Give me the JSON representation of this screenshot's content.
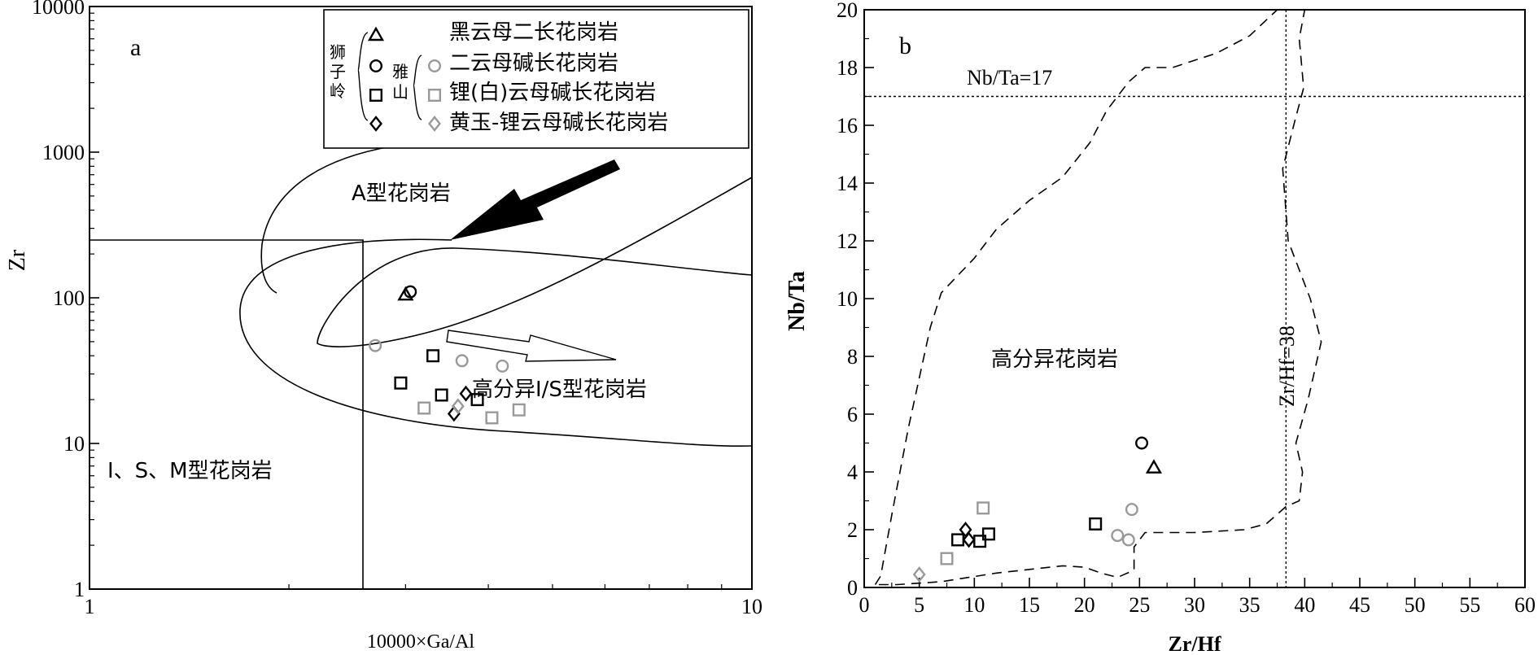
{
  "chart_data": [
    {
      "panel_label": "a",
      "type": "scatter",
      "x_scale": "log",
      "y_scale": "log",
      "xlabel": "10000×Ga/Al",
      "ylabel": "Zr",
      "xlim": [
        1,
        10
      ],
      "ylim": [
        1,
        10000
      ],
      "x_ticks": [
        "1",
        "10"
      ],
      "y_ticks": [
        "1",
        "10",
        "100",
        "1000",
        "10000"
      ],
      "field_labels": {
        "a_type": "A型花岗岩",
        "fractionated": "高分异I/S型花岗岩",
        "ism": "I、S、M型花岗岩"
      },
      "legend": {
        "group1": "狮子岭",
        "group2": "雅山",
        "entries": [
          "黑云母二长花岗岩",
          "二云母碱长花岗岩",
          "锂(白)云母碱长花岗岩",
          "黄玉-锂云母碱长花岗岩"
        ]
      },
      "series": [
        {
          "name": "黑云母二长花岗岩",
          "group": "狮子岭",
          "marker": "triangle",
          "color": "#000000",
          "x": [
            3.0
          ],
          "y": [
            105
          ]
        },
        {
          "name": "二云母碱长花岗岩",
          "group": "狮子岭",
          "marker": "circle",
          "color": "#000000",
          "x": [
            3.05
          ],
          "y": [
            110
          ]
        },
        {
          "name": "锂(白)云母碱长花岗岩",
          "group": "狮子岭",
          "marker": "square",
          "color": "#000000",
          "x": [
            2.95,
            3.3,
            3.4,
            3.85
          ],
          "y": [
            26,
            40,
            21.5,
            20
          ]
        },
        {
          "name": "黄玉-锂云母碱长花岗岩",
          "group": "狮子岭",
          "marker": "diamond",
          "color": "#000000",
          "x": [
            3.55,
            3.7
          ],
          "y": [
            16,
            22
          ]
        },
        {
          "name": "二云母碱长花岗岩",
          "group": "雅山",
          "marker": "circle",
          "color": "#999999",
          "x": [
            2.7,
            3.65,
            4.2
          ],
          "y": [
            47,
            37,
            34
          ]
        },
        {
          "name": "锂(白)云母碱长花岗岩",
          "group": "雅山",
          "marker": "square",
          "color": "#999999",
          "x": [
            3.2,
            4.05,
            4.45
          ],
          "y": [
            17.5,
            15,
            17
          ]
        },
        {
          "name": "黄玉-锂云母碱长花岗岩",
          "group": "雅山",
          "marker": "diamond",
          "color": "#999999",
          "x": [
            3.6
          ],
          "y": [
            18
          ]
        }
      ]
    },
    {
      "panel_label": "b",
      "type": "scatter",
      "xlabel": "Zr/Hf",
      "ylabel": "Nb/Ta",
      "xlim": [
        0,
        60
      ],
      "ylim": [
        0,
        20
      ],
      "x_ticks": [
        "0",
        "5",
        "10",
        "15",
        "20",
        "25",
        "30",
        "35",
        "40",
        "45",
        "50",
        "55",
        "60"
      ],
      "y_ticks": [
        "0",
        "2",
        "4",
        "6",
        "8",
        "10",
        "12",
        "14",
        "16",
        "18",
        "20"
      ],
      "field_label": "高分异花岗岩",
      "ref_lines": {
        "nbta": "Nb/Ta=17",
        "zrhf": "Zr/Hf=38"
      },
      "ref_values": {
        "nbta": 17,
        "zrhf": 38.3
      },
      "series": [
        {
          "name": "黑云母二长花岗岩",
          "group": "狮子岭",
          "marker": "triangle",
          "color": "#000000",
          "x": [
            26.3
          ],
          "y": [
            4.15
          ]
        },
        {
          "name": "二云母碱长花岗岩",
          "group": "狮子岭",
          "marker": "circle",
          "color": "#000000",
          "x": [
            25.2
          ],
          "y": [
            5.0
          ]
        },
        {
          "name": "锂(白)云母碱长花岗岩",
          "group": "狮子岭",
          "marker": "square",
          "color": "#000000",
          "x": [
            8.5,
            10.5,
            11.3,
            21
          ],
          "y": [
            1.65,
            1.6,
            1.85,
            2.2
          ]
        },
        {
          "name": "黄玉-锂云母碱长花岗岩",
          "group": "狮子岭",
          "marker": "diamond",
          "color": "#000000",
          "x": [
            9.2,
            9.5
          ],
          "y": [
            2.0,
            1.65
          ]
        },
        {
          "name": "二云母碱长花岗岩",
          "group": "雅山",
          "marker": "circle",
          "color": "#999999",
          "x": [
            23,
            24,
            24.3
          ],
          "y": [
            1.8,
            1.65,
            2.7
          ]
        },
        {
          "name": "锂(白)云母碱长花岗岩",
          "group": "雅山",
          "marker": "square",
          "color": "#999999",
          "x": [
            7.5,
            10.8
          ],
          "y": [
            1.0,
            2.75
          ]
        },
        {
          "name": "黄玉-锂云母碱长花岗岩",
          "group": "雅山",
          "marker": "diamond",
          "color": "#999999",
          "x": [
            5.0
          ],
          "y": [
            0.45
          ]
        }
      ]
    }
  ]
}
